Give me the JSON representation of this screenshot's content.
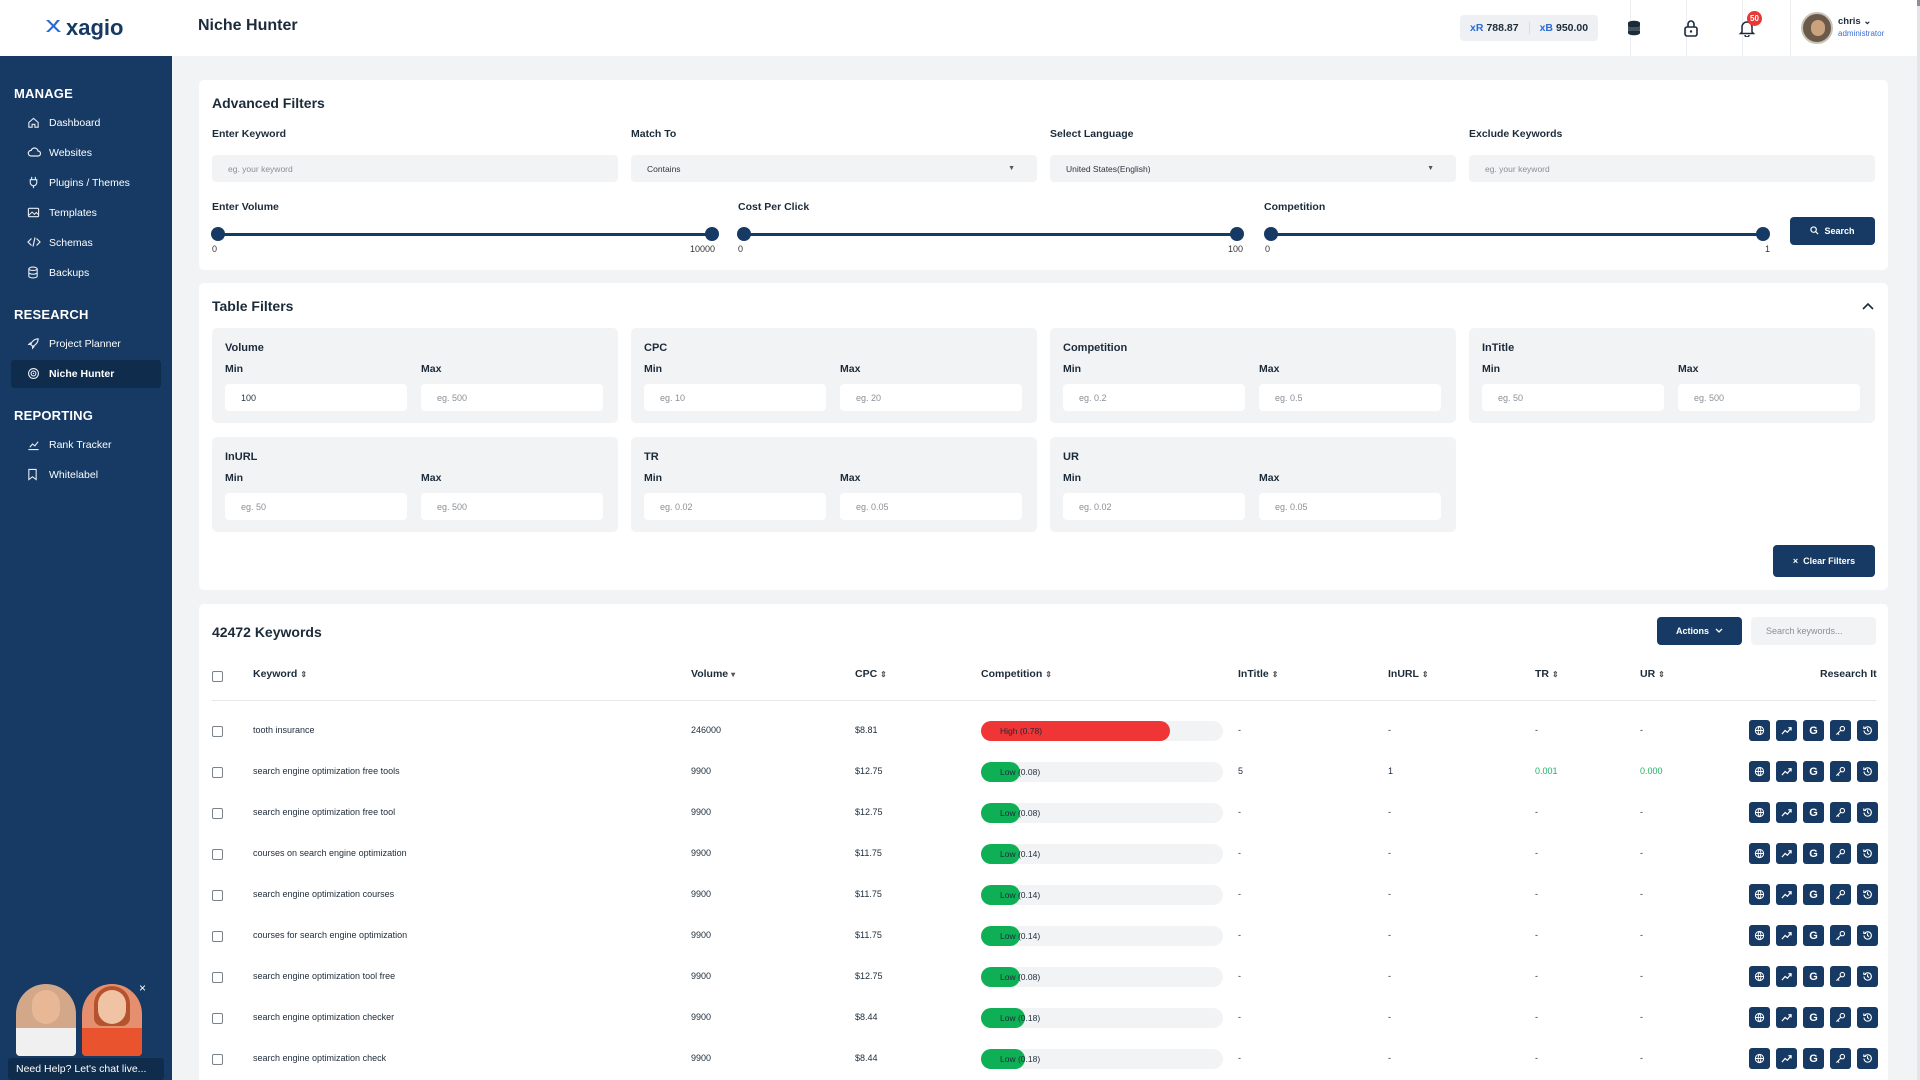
{
  "app": {
    "brand": "xagio",
    "page_title": "Niche Hunter"
  },
  "sidebar": {
    "sections": [
      {
        "title": "MANAGE",
        "items": [
          {
            "label": "Dashboard",
            "icon": "home-icon"
          },
          {
            "label": "Websites",
            "icon": "cloud-icon"
          },
          {
            "label": "Plugins / Themes",
            "icon": "plug-icon"
          },
          {
            "label": "Templates",
            "icon": "image-icon"
          },
          {
            "label": "Schemas",
            "icon": "code-icon"
          },
          {
            "label": "Backups",
            "icon": "database-icon"
          }
        ]
      },
      {
        "title": "RESEARCH",
        "items": [
          {
            "label": "Project Planner",
            "icon": "rocket-icon"
          },
          {
            "label": "Niche Hunter",
            "icon": "target-icon",
            "active": true
          }
        ]
      },
      {
        "title": "REPORTING",
        "items": [
          {
            "label": "Rank Tracker",
            "icon": "chart-icon"
          },
          {
            "label": "Whitelabel",
            "icon": "bookmark-icon"
          }
        ]
      }
    ],
    "help_text": "Need Help? Let's chat live...",
    "help_close": "×"
  },
  "topbar": {
    "credit_r": {
      "symbol": "xR",
      "value": "788.87"
    },
    "credit_b": {
      "symbol": "xB",
      "value": "950.00"
    },
    "notifications_count": "50",
    "user_name": "chris",
    "user_role": "administrator"
  },
  "advanced_filters": {
    "title": "Advanced Filters",
    "keyword": {
      "label": "Enter Keyword",
      "placeholder": "eg. your keyword"
    },
    "match_to": {
      "label": "Match To",
      "value": "Contains"
    },
    "language": {
      "label": "Select Language",
      "value": "United States(English)"
    },
    "exclude": {
      "label": "Exclude Keywords",
      "placeholder": "eg. your keyword"
    },
    "volume": {
      "label": "Enter Volume",
      "min": "0",
      "max": "10000"
    },
    "cpc": {
      "label": "Cost Per Click",
      "min": "0",
      "max": "100"
    },
    "competition": {
      "label": "Competition",
      "min": "0",
      "max": "1"
    },
    "search_label": "Search"
  },
  "table_filters": {
    "title": "Table Filters",
    "min_label": "Min",
    "max_label": "Max",
    "groups": [
      {
        "title": "Volume",
        "min": "100",
        "max": "eg. 500",
        "min_filled": true
      },
      {
        "title": "CPC",
        "min": "eg. 10",
        "max": "eg. 20"
      },
      {
        "title": "Competition",
        "min": "eg. 0.2",
        "max": "eg. 0.5"
      },
      {
        "title": "InTitle",
        "min": "eg. 50",
        "max": "eg. 500"
      },
      {
        "title": "InURL",
        "min": "eg. 50",
        "max": "eg. 500"
      },
      {
        "title": "TR",
        "min": "eg. 0.02",
        "max": "eg. 0.05"
      },
      {
        "title": "UR",
        "min": "eg. 0.02",
        "max": "eg. 0.05"
      }
    ],
    "clear_label": "Clear Filters"
  },
  "keywords": {
    "count_title": "42472 Keywords",
    "actions_label": "Actions",
    "search_placeholder": "Search keywords...",
    "columns": [
      "Keyword",
      "Volume",
      "CPC",
      "Competition",
      "InTitle",
      "InURL",
      "TR",
      "UR",
      "Research It"
    ],
    "rows": [
      {
        "keyword": "tooth insurance",
        "volume": "246000",
        "cpc": "$8.81",
        "comp_label": "High (0.78)",
        "comp_value": 0.78,
        "comp_level": "high",
        "intitle": "-",
        "inurl": "-",
        "tr": "-",
        "ur": "-"
      },
      {
        "keyword": "search engine optimization free tools",
        "volume": "9900",
        "cpc": "$12.75",
        "comp_label": "Low (0.08)",
        "comp_value": 0.08,
        "comp_level": "low",
        "intitle": "5",
        "inurl": "1",
        "tr": "0.001",
        "ur": "0.000"
      },
      {
        "keyword": "search engine optimization free tool",
        "volume": "9900",
        "cpc": "$12.75",
        "comp_label": "Low (0.08)",
        "comp_value": 0.08,
        "comp_level": "low",
        "intitle": "-",
        "inurl": "-",
        "tr": "-",
        "ur": "-"
      },
      {
        "keyword": "courses on search engine optimization",
        "volume": "9900",
        "cpc": "$11.75",
        "comp_label": "Low (0.14)",
        "comp_value": 0.14,
        "comp_level": "low",
        "intitle": "-",
        "inurl": "-",
        "tr": "-",
        "ur": "-"
      },
      {
        "keyword": "search engine optimization courses",
        "volume": "9900",
        "cpc": "$11.75",
        "comp_label": "Low (0.14)",
        "comp_value": 0.14,
        "comp_level": "low",
        "intitle": "-",
        "inurl": "-",
        "tr": "-",
        "ur": "-"
      },
      {
        "keyword": "courses for search engine optimization",
        "volume": "9900",
        "cpc": "$11.75",
        "comp_label": "Low (0.14)",
        "comp_value": 0.14,
        "comp_level": "low",
        "intitle": "-",
        "inurl": "-",
        "tr": "-",
        "ur": "-"
      },
      {
        "keyword": "search engine optimization tool free",
        "volume": "9900",
        "cpc": "$12.75",
        "comp_label": "Low (0.08)",
        "comp_value": 0.08,
        "comp_level": "low",
        "intitle": "-",
        "inurl": "-",
        "tr": "-",
        "ur": "-"
      },
      {
        "keyword": "search engine optimization checker",
        "volume": "9900",
        "cpc": "$8.44",
        "comp_label": "Low (0.18)",
        "comp_value": 0.18,
        "comp_level": "low",
        "intitle": "-",
        "inurl": "-",
        "tr": "-",
        "ur": "-"
      },
      {
        "keyword": "search engine optimization check",
        "volume": "9900",
        "cpc": "$8.44",
        "comp_label": "Low (0.18)",
        "comp_value": 0.18,
        "comp_level": "low",
        "intitle": "-",
        "inurl": "-",
        "tr": "-",
        "ur": "-"
      }
    ],
    "research_buttons": [
      "globe-icon",
      "trend-icon",
      "google-icon",
      "key-icon",
      "history-icon"
    ]
  },
  "colors": {
    "navy": "#163a63",
    "high": "#ef3535",
    "low": "#0fb055",
    "green_text": "#1db362",
    "link_blue": "#2a6bd6"
  }
}
